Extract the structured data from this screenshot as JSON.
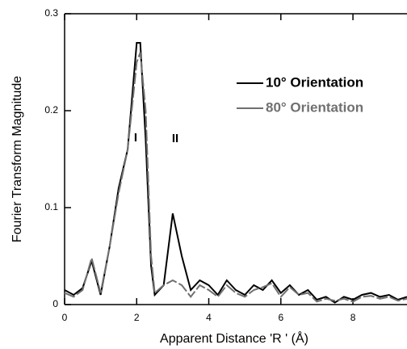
{
  "chart_data": {
    "type": "line",
    "xlabel": "Apparent Distance 'R ' (Å)",
    "ylabel": "Fourier Transform Magnitude",
    "x": [
      0,
      0.25,
      0.5,
      0.75,
      1,
      1.25,
      1.5,
      1.75,
      2,
      2.1,
      2.25,
      2.4,
      2.5,
      2.75,
      3,
      3.25,
      3.5,
      3.75,
      4,
      4.25,
      4.5,
      4.75,
      5,
      5.25,
      5.5,
      5.75,
      6,
      6.25,
      6.5,
      6.75,
      7,
      7.25,
      7.5,
      7.75,
      8,
      8.25,
      8.5,
      8.75,
      9,
      9.25,
      9.5
    ],
    "series": [
      {
        "name": "10° Orientation",
        "color": "#000000",
        "values": [
          0.015,
          0.01,
          0.017,
          0.045,
          0.01,
          0.06,
          0.12,
          0.16,
          0.27,
          0.27,
          0.17,
          0.04,
          0.01,
          0.02,
          0.094,
          0.05,
          0.015,
          0.025,
          0.02,
          0.01,
          0.025,
          0.015,
          0.01,
          0.02,
          0.015,
          0.025,
          0.012,
          0.02,
          0.01,
          0.015,
          0.005,
          0.008,
          0.002,
          0.008,
          0.005,
          0.01,
          0.012,
          0.008,
          0.01,
          0.005,
          0.008
        ]
      },
      {
        "name": "80° Orientation",
        "color": "#707070",
        "values": [
          0.012,
          0.008,
          0.015,
          0.048,
          0.012,
          0.06,
          0.115,
          0.16,
          0.25,
          0.26,
          0.2,
          0.05,
          0.012,
          0.02,
          0.025,
          0.02,
          0.008,
          0.02,
          0.015,
          0.008,
          0.02,
          0.012,
          0.008,
          0.015,
          0.018,
          0.022,
          0.008,
          0.018,
          0.01,
          0.012,
          0.003,
          0.006,
          0.004,
          0.006,
          0.003,
          0.008,
          0.009,
          0.006,
          0.008,
          0.004,
          0.006
        ]
      }
    ],
    "annotations": [
      "I",
      "II"
    ],
    "xlim": [
      0,
      9.5
    ],
    "xticks": [
      0,
      2,
      4,
      6,
      8
    ],
    "ylim": [
      0,
      0.3
    ],
    "yticks": [
      0,
      0.1,
      0.2,
      0.3
    ],
    "legend": "upper right",
    "grid": false
  }
}
